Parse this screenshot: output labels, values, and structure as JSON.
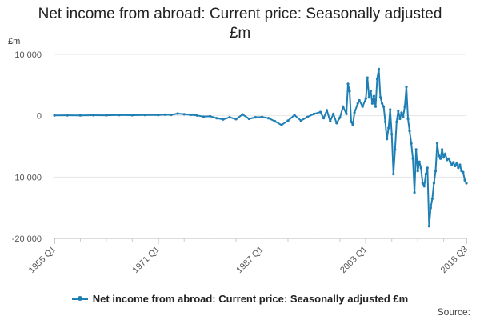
{
  "chart_data": {
    "type": "line",
    "title_line1": "Net income from abroad: Current price: Seasonally adjusted",
    "title_line2": "£m",
    "unit_label": "£m",
    "ylim": [
      -20000,
      10000
    ],
    "y_ticks": [
      10000,
      0,
      -10000,
      -20000
    ],
    "y_tick_labels": [
      "10 000",
      "0",
      "-10 000",
      "-20 000"
    ],
    "x_range": [
      "1955 Q1",
      "2018 Q3"
    ],
    "x_ticks": [
      "1955 Q1",
      "1971 Q1",
      "1987 Q1",
      "2003 Q1",
      "2018 Q3"
    ],
    "color": "#1f7fb4",
    "grid": true,
    "legend_position": "bottom",
    "series": [
      {
        "name": "Net income from abroad: Current price: Seasonally adjusted £m",
        "points": [
          [
            "1955 Q1",
            50
          ],
          [
            "1957 Q1",
            80
          ],
          [
            "1959 Q1",
            60
          ],
          [
            "1961 Q1",
            90
          ],
          [
            "1963 Q1",
            70
          ],
          [
            "1965 Q1",
            110
          ],
          [
            "1967 Q1",
            90
          ],
          [
            "1969 Q1",
            120
          ],
          [
            "1971 Q1",
            110
          ],
          [
            "1972 Q1",
            180
          ],
          [
            "1973 Q1",
            150
          ],
          [
            "1974 Q1",
            350
          ],
          [
            "1975 Q1",
            250
          ],
          [
            "1976 Q1",
            150
          ],
          [
            "1977 Q1",
            50
          ],
          [
            "1978 Q1",
            -150
          ],
          [
            "1979 Q1",
            -80
          ],
          [
            "1980 Q1",
            -400
          ],
          [
            "1981 Q1",
            -600
          ],
          [
            "1982 Q1",
            -250
          ],
          [
            "1983 Q1",
            -550
          ],
          [
            "1984 Q1",
            200
          ],
          [
            "1985 Q1",
            -500
          ],
          [
            "1986 Q1",
            -250
          ],
          [
            "1987 Q1",
            -200
          ],
          [
            "1988 Q1",
            -400
          ],
          [
            "1989 Q1",
            -900
          ],
          [
            "1990 Q1",
            -1500
          ],
          [
            "1991 Q1",
            -800
          ],
          [
            "1992 Q1",
            100
          ],
          [
            "1993 Q1",
            -800
          ],
          [
            "1994 Q1",
            -200
          ],
          [
            "1995 Q1",
            300
          ],
          [
            "1996 Q1",
            600
          ],
          [
            "1996 Q3",
            -400
          ],
          [
            "1997 Q1",
            900
          ],
          [
            "1997 Q3",
            -900
          ],
          [
            "1998 Q1",
            300
          ],
          [
            "1998 Q3",
            -1200
          ],
          [
            "1999 Q1",
            -300
          ],
          [
            "1999 Q3",
            1500
          ],
          [
            "2000 Q1",
            300
          ],
          [
            "2000 Q2",
            5200
          ],
          [
            "2000 Q3",
            4000
          ],
          [
            "2000 Q4",
            -1000
          ],
          [
            "2001 Q1",
            -1500
          ],
          [
            "2001 Q2",
            500
          ],
          [
            "2001 Q4",
            2000
          ],
          [
            "2002 Q1",
            2500
          ],
          [
            "2002 Q3",
            1500
          ],
          [
            "2003 Q1",
            2800
          ],
          [
            "2003 Q2",
            6200
          ],
          [
            "2003 Q3",
            3000
          ],
          [
            "2003 Q4",
            4000
          ],
          [
            "2004 Q1",
            2000
          ],
          [
            "2004 Q2",
            3200
          ],
          [
            "2004 Q3",
            1500
          ],
          [
            "2004 Q4",
            6000
          ],
          [
            "2005 Q1",
            7600
          ],
          [
            "2005 Q2",
            3000
          ],
          [
            "2005 Q3",
            2000
          ],
          [
            "2005 Q4",
            1500
          ],
          [
            "2006 Q1",
            -1000
          ],
          [
            "2006 Q2",
            -3800
          ],
          [
            "2006 Q3",
            -2000
          ],
          [
            "2006 Q4",
            1000
          ],
          [
            "2007 Q1",
            -3000
          ],
          [
            "2007 Q2",
            -9500
          ],
          [
            "2007 Q3",
            -5500
          ],
          [
            "2007 Q4",
            -1000
          ],
          [
            "2008 Q1",
            800
          ],
          [
            "2008 Q2",
            -500
          ],
          [
            "2008 Q3",
            500
          ],
          [
            "2008 Q4",
            -200
          ],
          [
            "2009 Q1",
            1500
          ],
          [
            "2009 Q2",
            4700
          ],
          [
            "2009 Q3",
            -500
          ],
          [
            "2009 Q4",
            -2500
          ],
          [
            "2010 Q1",
            -4500
          ],
          [
            "2010 Q2",
            -7000
          ],
          [
            "2010 Q3",
            -12500
          ],
          [
            "2010 Q4",
            -5500
          ],
          [
            "2011 Q1",
            -9000
          ],
          [
            "2011 Q2",
            -7500
          ],
          [
            "2011 Q3",
            -8500
          ],
          [
            "2011 Q4",
            -11000
          ],
          [
            "2012 Q1",
            -11500
          ],
          [
            "2012 Q2",
            -9500
          ],
          [
            "2012 Q3",
            -8500
          ],
          [
            "2012 Q4",
            -18000
          ],
          [
            "2013 Q1",
            -15000
          ],
          [
            "2013 Q2",
            -13500
          ],
          [
            "2013 Q3",
            -11000
          ],
          [
            "2013 Q4",
            -9000
          ],
          [
            "2014 Q1",
            -4500
          ],
          [
            "2014 Q2",
            -6500
          ],
          [
            "2014 Q3",
            -7000
          ],
          [
            "2014 Q4",
            -5500
          ],
          [
            "2015 Q1",
            -6800
          ],
          [
            "2015 Q2",
            -6200
          ],
          [
            "2015 Q3",
            -7200
          ],
          [
            "2015 Q4",
            -7000
          ],
          [
            "2016 Q1",
            -7500
          ],
          [
            "2016 Q2",
            -8000
          ],
          [
            "2016 Q3",
            -7600
          ],
          [
            "2016 Q4",
            -8200
          ],
          [
            "2017 Q1",
            -7800
          ],
          [
            "2017 Q2",
            -8500
          ],
          [
            "2017 Q3",
            -8000
          ],
          [
            "2017 Q4",
            -9000
          ],
          [
            "2018 Q1",
            -9200
          ],
          [
            "2018 Q2",
            -10500
          ],
          [
            "2018 Q3",
            -11000
          ]
        ]
      }
    ]
  },
  "legend": {
    "label": "Net income from abroad: Current price: Seasonally adjusted £m"
  },
  "source_label": "Source:"
}
